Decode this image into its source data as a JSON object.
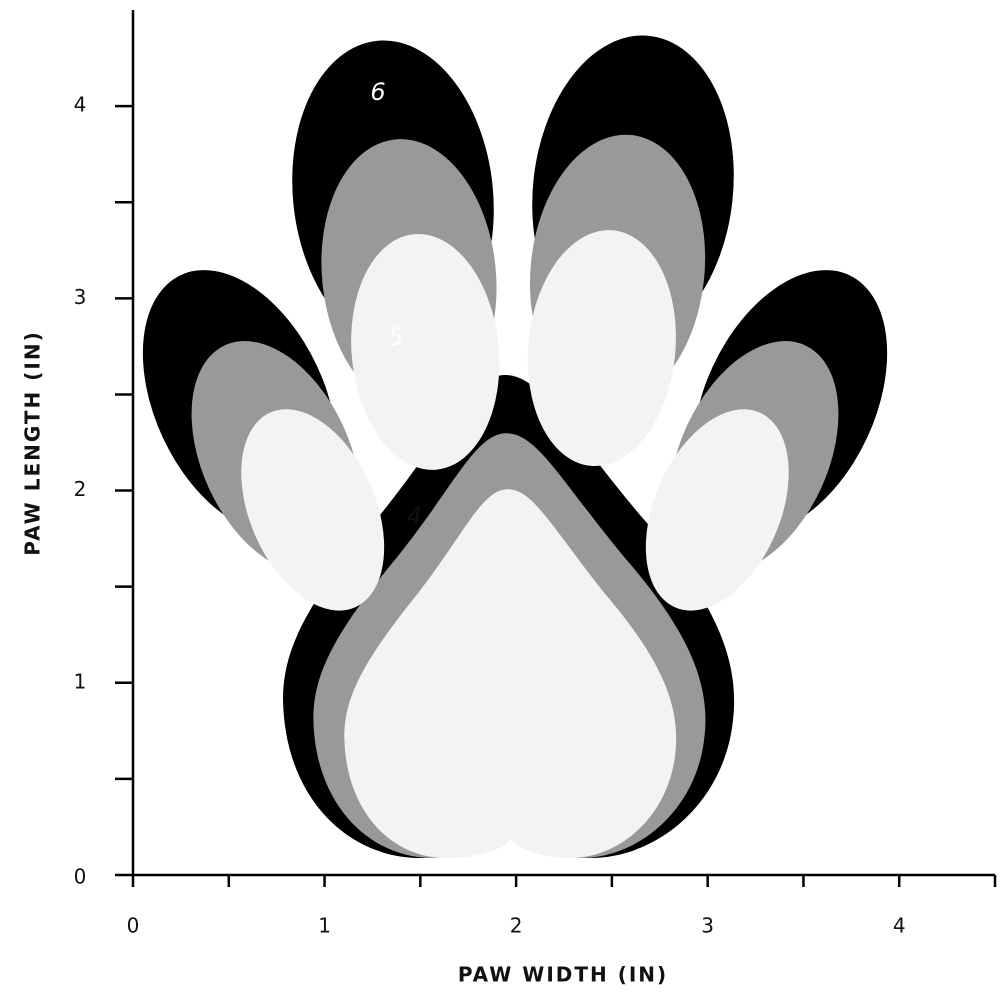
{
  "chart_data": {
    "type": "paw",
    "x_label": "PAW WIDTH (IN)",
    "y_label": "PAW LENGTH (IN)",
    "xlim": [
      0,
      4.5
    ],
    "xticks": [
      0,
      1,
      2,
      3,
      4
    ],
    "ylim": [
      0,
      4.5
    ],
    "yticks": [
      0,
      1,
      2,
      3,
      4
    ],
    "series": [
      {
        "name": "6",
        "color": "#000000",
        "width": 3.82,
        "length": 4.31
      },
      {
        "name": "5",
        "color": "#999999",
        "width": 3.32,
        "length": 3.79
      },
      {
        "name": "4",
        "color": "#f2f3f5",
        "width": 2.81,
        "length": 3.29
      }
    ]
  }
}
